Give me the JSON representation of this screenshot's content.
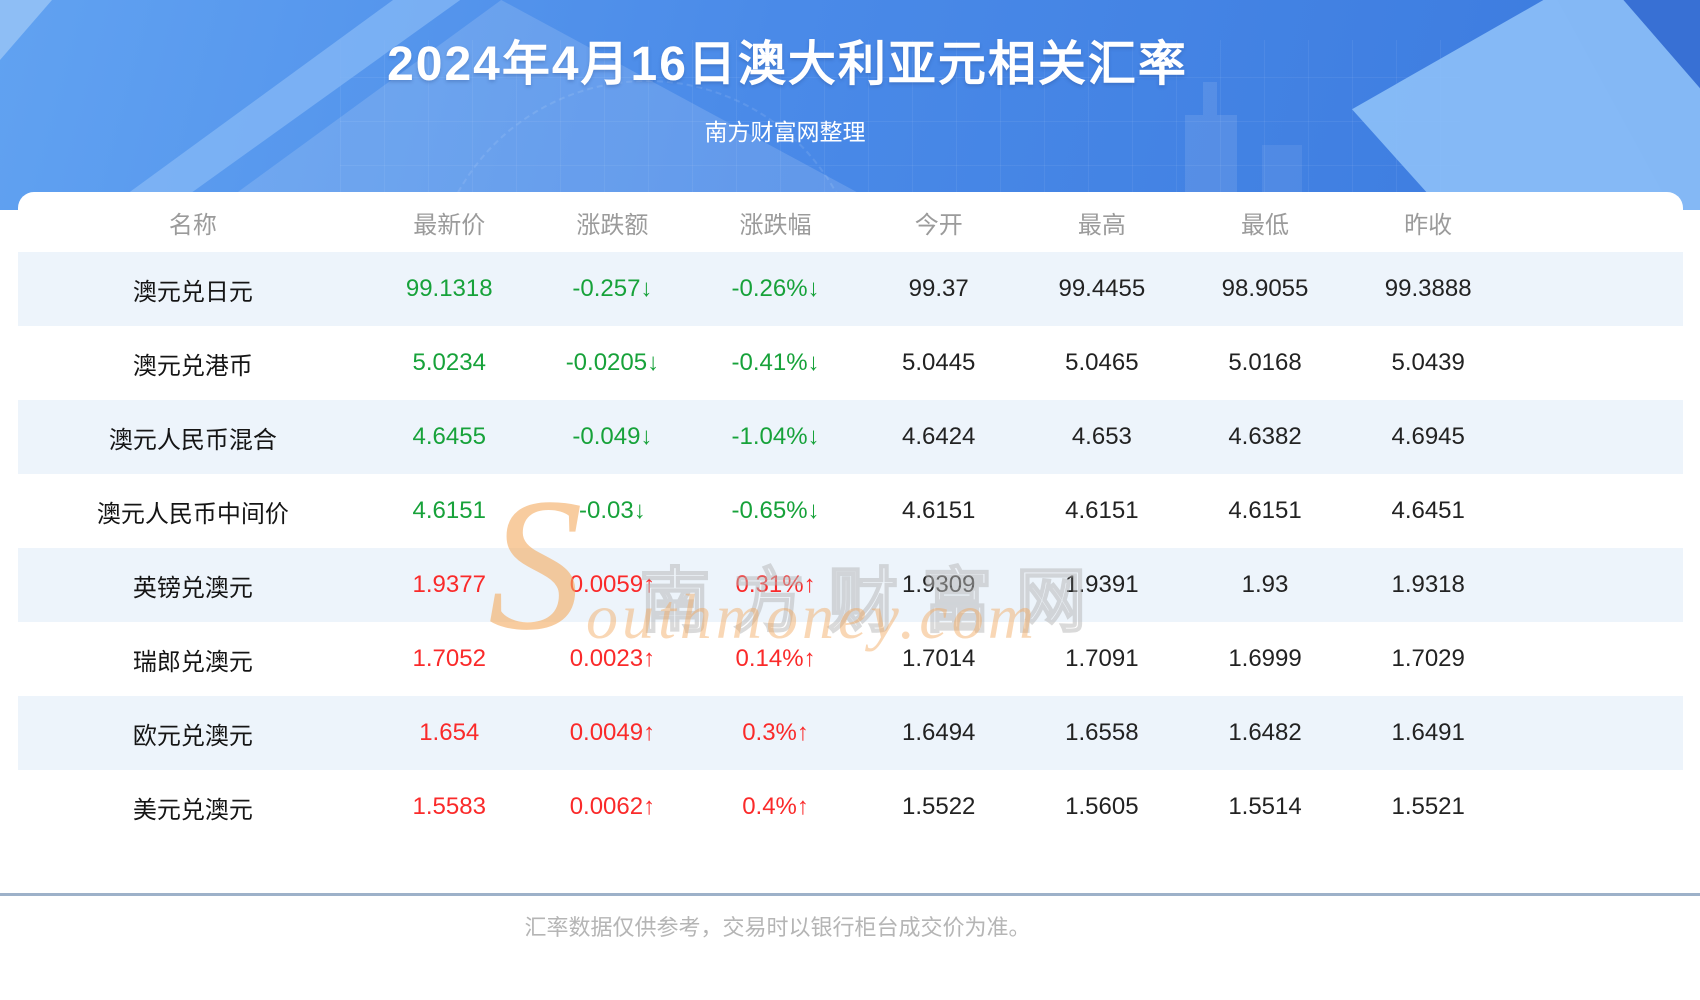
{
  "page": {
    "title": "2024年4月16日澳大利亚元相关汇率",
    "subtitle": "南方财富网整理",
    "footer_note": "汇率数据仅供参考，交易时以银行柜台成交价为准。"
  },
  "watermark": {
    "initial": "S",
    "cn_text": "南方财富网",
    "en_text": "outhmoney.com"
  },
  "colors": {
    "up": "#fa2a2a",
    "down": "#17a23a",
    "banner_start": "#61a2f1",
    "banner_end": "#3b7ade",
    "row_stripe": "#edf4fb",
    "divider": "#9db1c9"
  },
  "table": {
    "headers": [
      "名称",
      "最新价",
      "涨跌额",
      "涨跌幅",
      "今开",
      "最高",
      "最低",
      "昨收"
    ],
    "rows": [
      {
        "name": "澳元兑日元",
        "latest": "99.1318",
        "change": "-0.257↓",
        "change_pct": "-0.26%↓",
        "open": "99.37",
        "high": "99.4455",
        "low": "98.9055",
        "prev_close": "99.3888",
        "direction": "down"
      },
      {
        "name": "澳元兑港币",
        "latest": "5.0234",
        "change": "-0.0205↓",
        "change_pct": "-0.41%↓",
        "open": "5.0445",
        "high": "5.0465",
        "low": "5.0168",
        "prev_close": "5.0439",
        "direction": "down"
      },
      {
        "name": "澳元人民币混合",
        "latest": "4.6455",
        "change": "-0.049↓",
        "change_pct": "-1.04%↓",
        "open": "4.6424",
        "high": "4.653",
        "low": "4.6382",
        "prev_close": "4.6945",
        "direction": "down"
      },
      {
        "name": "澳元人民币中间价",
        "latest": "4.6151",
        "change": "-0.03↓",
        "change_pct": "-0.65%↓",
        "open": "4.6151",
        "high": "4.6151",
        "low": "4.6151",
        "prev_close": "4.6451",
        "direction": "down"
      },
      {
        "name": "英镑兑澳元",
        "latest": "1.9377",
        "change": "0.0059↑",
        "change_pct": "0.31%↑",
        "open": "1.9309",
        "high": "1.9391",
        "low": "1.93",
        "prev_close": "1.9318",
        "direction": "up"
      },
      {
        "name": "瑞郎兑澳元",
        "latest": "1.7052",
        "change": "0.0023↑",
        "change_pct": "0.14%↑",
        "open": "1.7014",
        "high": "1.7091",
        "low": "1.6999",
        "prev_close": "1.7029",
        "direction": "up"
      },
      {
        "name": "欧元兑澳元",
        "latest": "1.654",
        "change": "0.0049↑",
        "change_pct": "0.3%↑",
        "open": "1.6494",
        "high": "1.6558",
        "low": "1.6482",
        "prev_close": "1.6491",
        "direction": "up"
      },
      {
        "name": "美元兑澳元",
        "latest": "1.5583",
        "change": "0.0062↑",
        "change_pct": "0.4%↑",
        "open": "1.5522",
        "high": "1.5605",
        "low": "1.5514",
        "prev_close": "1.5521",
        "direction": "up"
      }
    ]
  }
}
